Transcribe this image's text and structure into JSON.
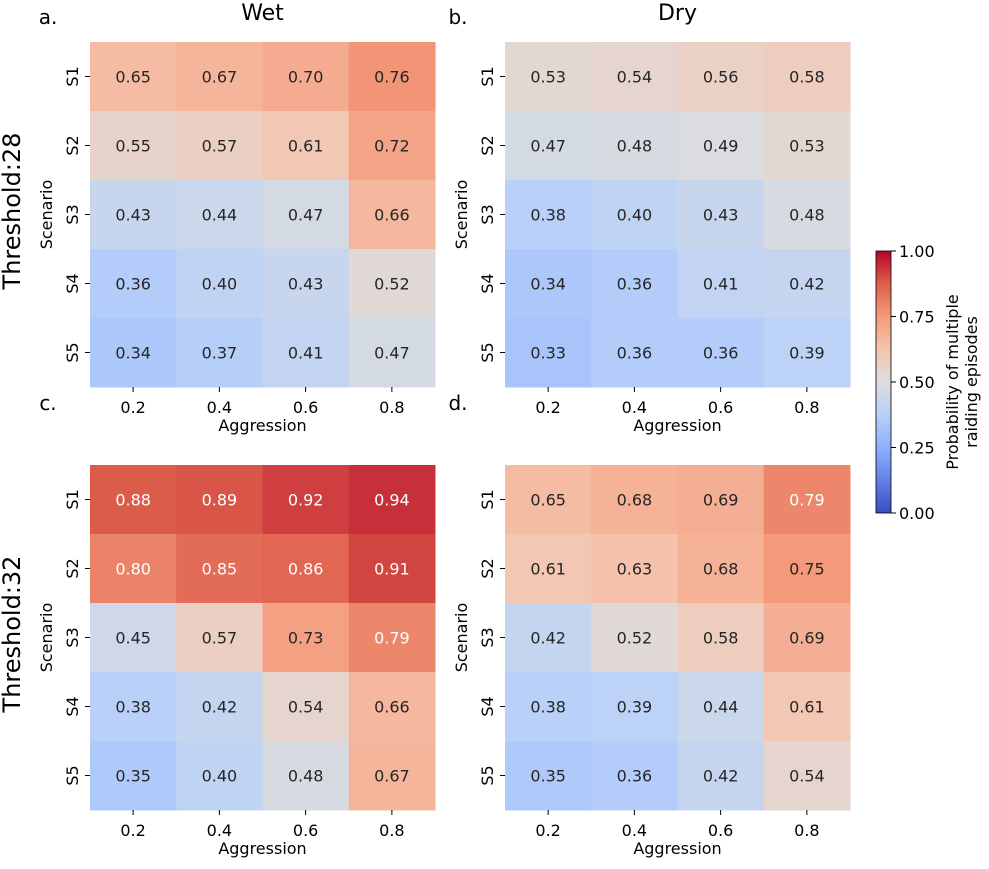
{
  "figure": {
    "row_labels": [
      "Threshold:28",
      "Threshold:32"
    ],
    "colorbar": {
      "label_lines": [
        "Probability of multiple",
        "raiding episodes"
      ],
      "ticks": [
        "0.00",
        "0.25",
        "0.50",
        "0.75",
        "1.00"
      ],
      "tick_values": [
        0,
        0.25,
        0.5,
        0.75,
        1.0
      ],
      "range": [
        0,
        1
      ],
      "colormap": "coolwarm",
      "colors": [
        "#3b4cc0",
        "#dddddd",
        "#b40426"
      ]
    }
  },
  "chart_data": [
    {
      "type": "heatmap",
      "panel_label": "a.",
      "title": "Wet",
      "xlabel": "Aggression",
      "ylabel": "Scenario",
      "x_ticks": [
        "0.2",
        "0.4",
        "0.6",
        "0.8"
      ],
      "y_ticks": [
        "S1",
        "S2",
        "S3",
        "S4",
        "S5"
      ],
      "values": [
        [
          0.65,
          0.67,
          0.7,
          0.76
        ],
        [
          0.55,
          0.57,
          0.61,
          0.72
        ],
        [
          0.43,
          0.44,
          0.47,
          0.66
        ],
        [
          0.36,
          0.4,
          0.43,
          0.52
        ],
        [
          0.34,
          0.37,
          0.41,
          0.47
        ]
      ],
      "labels": [
        [
          "0.65",
          "0.67",
          "0.70",
          "0.76"
        ],
        [
          "0.55",
          "0.57",
          "0.61",
          "0.72"
        ],
        [
          "0.43",
          "0.44",
          "0.47",
          "0.66"
        ],
        [
          "0.36",
          "0.40",
          "0.43",
          "0.52"
        ],
        [
          "0.34",
          "0.37",
          "0.41",
          "0.47"
        ]
      ]
    },
    {
      "type": "heatmap",
      "panel_label": "b.",
      "title": "Dry",
      "xlabel": "Aggression",
      "ylabel": "Scenario",
      "x_ticks": [
        "0.2",
        "0.4",
        "0.6",
        "0.8"
      ],
      "y_ticks": [
        "S1",
        "S2",
        "S3",
        "S4",
        "S5"
      ],
      "values": [
        [
          0.53,
          0.54,
          0.56,
          0.58
        ],
        [
          0.47,
          0.48,
          0.49,
          0.53
        ],
        [
          0.38,
          0.4,
          0.43,
          0.48
        ],
        [
          0.34,
          0.36,
          0.41,
          0.42
        ],
        [
          0.33,
          0.36,
          0.36,
          0.39
        ]
      ],
      "labels": [
        [
          "0.53",
          "0.54",
          "0.56",
          "0.58"
        ],
        [
          "0.47",
          "0.48",
          "0.49",
          "0.53"
        ],
        [
          "0.38",
          "0.40",
          "0.43",
          "0.48"
        ],
        [
          "0.34",
          "0.36",
          "0.41",
          "0.42"
        ],
        [
          "0.33",
          "0.36",
          "0.36",
          "0.39"
        ]
      ]
    },
    {
      "type": "heatmap",
      "panel_label": "c.",
      "title": "",
      "xlabel": "Aggression",
      "ylabel": "Scenario",
      "x_ticks": [
        "0.2",
        "0.4",
        "0.6",
        "0.8"
      ],
      "y_ticks": [
        "S1",
        "S2",
        "S3",
        "S4",
        "S5"
      ],
      "values": [
        [
          0.88,
          0.89,
          0.92,
          0.94
        ],
        [
          0.8,
          0.85,
          0.86,
          0.91
        ],
        [
          0.45,
          0.57,
          0.73,
          0.79
        ],
        [
          0.38,
          0.42,
          0.54,
          0.66
        ],
        [
          0.35,
          0.4,
          0.48,
          0.67
        ]
      ],
      "labels": [
        [
          "0.88",
          "0.89",
          "0.92",
          "0.94"
        ],
        [
          "0.80",
          "0.85",
          "0.86",
          "0.91"
        ],
        [
          "0.45",
          "0.57",
          "0.73",
          "0.79"
        ],
        [
          "0.38",
          "0.42",
          "0.54",
          "0.66"
        ],
        [
          "0.35",
          "0.40",
          "0.48",
          "0.67"
        ]
      ]
    },
    {
      "type": "heatmap",
      "panel_label": "d.",
      "title": "",
      "xlabel": "Aggression",
      "ylabel": "Scenario",
      "x_ticks": [
        "0.2",
        "0.4",
        "0.6",
        "0.8"
      ],
      "y_ticks": [
        "S1",
        "S2",
        "S3",
        "S4",
        "S5"
      ],
      "values": [
        [
          0.65,
          0.68,
          0.69,
          0.79
        ],
        [
          0.61,
          0.63,
          0.68,
          0.75
        ],
        [
          0.42,
          0.52,
          0.58,
          0.69
        ],
        [
          0.38,
          0.39,
          0.44,
          0.61
        ],
        [
          0.35,
          0.36,
          0.42,
          0.54
        ]
      ],
      "labels": [
        [
          "0.65",
          "0.68",
          "0.69",
          "0.79"
        ],
        [
          "0.61",
          "0.63",
          "0.68",
          "0.75"
        ],
        [
          "0.42",
          "0.52",
          "0.58",
          "0.69"
        ],
        [
          "0.38",
          "0.39",
          "0.44",
          "0.61"
        ],
        [
          "0.35",
          "0.36",
          "0.42",
          "0.54"
        ]
      ]
    }
  ]
}
